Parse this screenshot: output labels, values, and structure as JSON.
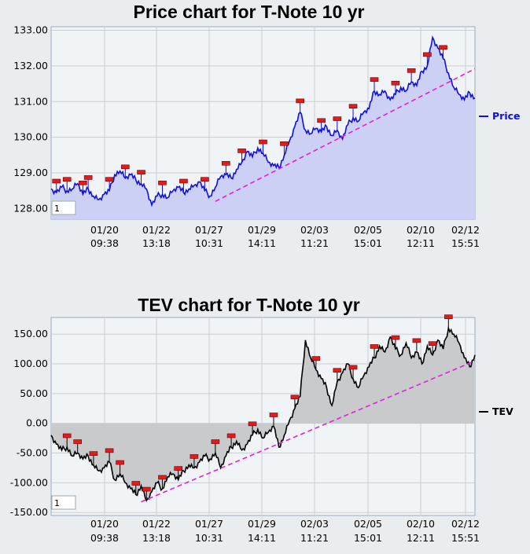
{
  "chart_data": [
    {
      "type": "area",
      "title": "Price chart for T-Note 10 yr",
      "ylim": [
        127.7,
        133.1
      ],
      "yticks": [
        "133.00",
        "132.00",
        "131.00",
        "130.00",
        "129.00",
        "128.00"
      ],
      "ytick_values": [
        133,
        132,
        131,
        130,
        129,
        128
      ],
      "xticks": [
        {
          "date": "01/20",
          "time": "09:38"
        },
        {
          "date": "01/22",
          "time": "13:18"
        },
        {
          "date": "01/27",
          "time": "10:31"
        },
        {
          "date": "01/29",
          "time": "14:11"
        },
        {
          "date": "02/03",
          "time": "11:21"
        },
        {
          "date": "02/05",
          "time": "15:01"
        },
        {
          "date": "02/10",
          "time": "12:11"
        },
        {
          "date": "02/12",
          "time": "15:51"
        }
      ],
      "grid": true,
      "legend": "right",
      "series": [
        {
          "name": "Price",
          "color": "#1010e0",
          "fill": "#cdd0f5",
          "x": [
            0,
            1,
            2,
            3,
            4,
            5,
            6,
            7,
            8,
            9,
            10,
            11,
            12,
            13,
            14,
            15,
            16,
            17,
            18,
            19,
            20,
            21,
            22,
            23,
            24,
            25,
            26,
            27,
            28,
            29,
            30,
            31,
            32,
            33,
            34,
            35,
            36,
            37,
            38,
            39,
            40,
            41,
            42,
            43,
            44,
            45,
            46,
            47,
            48,
            49,
            50,
            51,
            52,
            53,
            54,
            55,
            56,
            57,
            58,
            59,
            60,
            61,
            62,
            63,
            64,
            65,
            66,
            67,
            68,
            69,
            70,
            71,
            72,
            73,
            74,
            75,
            76,
            77,
            78,
            79,
            80
          ],
          "values": [
            128.55,
            128.45,
            128.6,
            128.5,
            128.55,
            128.7,
            128.4,
            128.55,
            128.35,
            128.25,
            128.4,
            128.5,
            128.95,
            129.05,
            128.85,
            128.95,
            128.8,
            128.7,
            128.55,
            128.1,
            128.35,
            128.4,
            128.3,
            128.5,
            128.6,
            128.45,
            128.55,
            128.65,
            128.75,
            128.5,
            128.35,
            128.6,
            128.9,
            128.95,
            128.85,
            129.1,
            129.3,
            129.6,
            129.45,
            129.7,
            129.55,
            129.3,
            129.2,
            129.15,
            129.5,
            129.9,
            130.3,
            130.7,
            130.2,
            130.1,
            130.25,
            130.15,
            130.3,
            130.05,
            130.2,
            129.95,
            130.35,
            130.55,
            130.45,
            130.7,
            130.8,
            131.3,
            131.2,
            131.3,
            131.05,
            131.2,
            131.4,
            131.3,
            131.55,
            131.45,
            131.85,
            132.0,
            132.8,
            132.5,
            132.2,
            131.8,
            131.4,
            131.2,
            131.05,
            131.25,
            131.1
          ],
          "markers": [
            1,
            3,
            6,
            7,
            11,
            14,
            17,
            21,
            25,
            29,
            33,
            36,
            40,
            44,
            47,
            51,
            54,
            57,
            61,
            65,
            68,
            71,
            74
          ]
        }
      ],
      "trendline": {
        "color": "#e020e0",
        "x": [
          31,
          80
        ],
        "values": [
          128.2,
          131.92
        ]
      },
      "interval_box": "1"
    },
    {
      "type": "area",
      "title": "TEV chart for T-Note 10 yr",
      "ylim": [
        -155,
        178
      ],
      "yticks": [
        "150.00",
        "100.00",
        "50.00",
        "0.00",
        "-50.00",
        "-100.00",
        "-150.00"
      ],
      "ytick_values": [
        150,
        100,
        50,
        0,
        -50,
        -100,
        -150
      ],
      "xticks": [
        {
          "date": "01/20",
          "time": "09:38"
        },
        {
          "date": "01/22",
          "time": "13:18"
        },
        {
          "date": "01/27",
          "time": "10:31"
        },
        {
          "date": "01/29",
          "time": "14:11"
        },
        {
          "date": "02/03",
          "time": "11:21"
        },
        {
          "date": "02/05",
          "time": "15:01"
        },
        {
          "date": "02/10",
          "time": "12:11"
        },
        {
          "date": "02/12",
          "time": "15:51"
        }
      ],
      "grid": true,
      "legend": "right",
      "series": [
        {
          "name": "TEV",
          "color": "#000000",
          "fill": "#c8cacc",
          "x": [
            0,
            1,
            2,
            3,
            4,
            5,
            6,
            7,
            8,
            9,
            10,
            11,
            12,
            13,
            14,
            15,
            16,
            17,
            18,
            19,
            20,
            21,
            22,
            23,
            24,
            25,
            26,
            27,
            28,
            29,
            30,
            31,
            32,
            33,
            34,
            35,
            36,
            37,
            38,
            39,
            40,
            41,
            42,
            43,
            44,
            45,
            46,
            47,
            48,
            49,
            50,
            51,
            52,
            53,
            54,
            55,
            56,
            57,
            58,
            59,
            60,
            61,
            62,
            63,
            64,
            65,
            66,
            67,
            68,
            69,
            70,
            71,
            72,
            73,
            74,
            75,
            76,
            77,
            78,
            79,
            80
          ],
          "values": [
            -20,
            -35,
            -45,
            -40,
            -55,
            -50,
            -60,
            -55,
            -70,
            -80,
            -75,
            -65,
            -95,
            -85,
            -100,
            -110,
            -120,
            -105,
            -130,
            -115,
            -100,
            -110,
            -90,
            -85,
            -95,
            -80,
            -70,
            -75,
            -65,
            -55,
            -60,
            -50,
            -75,
            -55,
            -40,
            -30,
            -45,
            -35,
            -20,
            -10,
            -25,
            -15,
            -5,
            -40,
            -20,
            5,
            25,
            45,
            140,
            110,
            90,
            75,
            60,
            30,
            70,
            85,
            100,
            75,
            60,
            80,
            95,
            110,
            130,
            120,
            145,
            125,
            115,
            135,
            110,
            120,
            100,
            130,
            115,
            140,
            125,
            160,
            150,
            135,
            110,
            95,
            115
          ],
          "markers": [
            3,
            5,
            8,
            11,
            13,
            16,
            18,
            21,
            24,
            27,
            31,
            34,
            38,
            42,
            46,
            50,
            54,
            57,
            61,
            65,
            69,
            72,
            75
          ]
        }
      ],
      "trendline": {
        "color": "#e020e0",
        "x": [
          17,
          80
        ],
        "values": [
          -132,
          105
        ]
      },
      "interval_box": "1"
    }
  ]
}
